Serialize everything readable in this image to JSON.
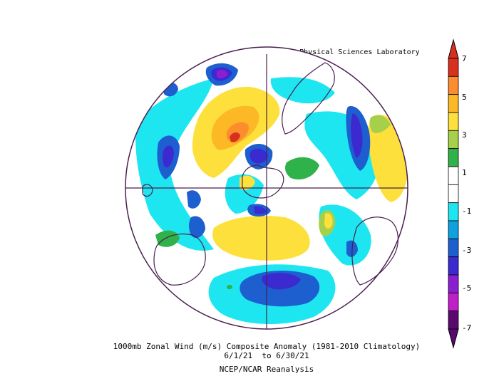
{
  "credit": "NOAA Physical Sciences Laboratory",
  "caption": {
    "line1": "1000mb Zonal Wind (m/s) Composite Anomaly (1981-2010 Climatology)",
    "line2": "6/1/21  to 6/30/21",
    "line3": "NCEP/NCAR Reanalysis"
  },
  "projection": "south-polar-stereographic",
  "colorbar": {
    "labels": [
      "7",
      "5",
      "3",
      "1",
      "-1",
      "-3",
      "-5",
      "-7"
    ],
    "colors": [
      "#d7301f",
      "#fc8d2f",
      "#fdb825",
      "#fde03c",
      "#a7d04a",
      "#2fb24a",
      "#ffffff",
      "#ffffff",
      "#1ee6f0",
      "#0fa0e0",
      "#1e5fd0",
      "#3a2ad0",
      "#8a1ed0",
      "#c01ec8",
      "#5a0a6e"
    ]
  }
}
